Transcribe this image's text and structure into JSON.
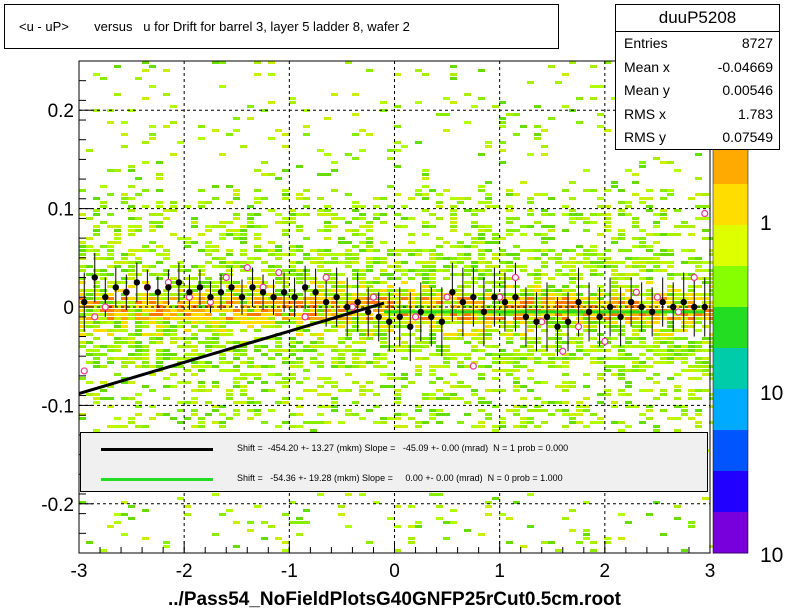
{
  "title": "<u - uP>       versus   u for Drift for barrel 3, layer 5 ladder 8, wafer 2",
  "stats": {
    "name": "duuP5208",
    "rows": [
      {
        "label": "Entries",
        "value": "8727"
      },
      {
        "label": "Mean x",
        "value": "-0.04669"
      },
      {
        "label": "Mean y",
        "value": "0.00546"
      },
      {
        "label": "RMS x",
        "value": "1.783"
      },
      {
        "label": "RMS y",
        "value": "0.07549"
      }
    ]
  },
  "fits": [
    {
      "color": "#000000",
      "text": "Shift =  -454.20 +- 13.27 (mkm) Slope =   -45.09 +- 0.00 (mrad)  N = 1 prob = 0.000"
    },
    {
      "color": "#22dd22",
      "text": "Shift =   -54.36 +- 19.28 (mkm) Slope =     0.00 +- 0.00 (mrad)  N = 0 prob = 1.000"
    }
  ],
  "file_label": "../Pass54_NoFieldPlotsG40GNFP25rCut0.5cm.root",
  "chart_data": {
    "type": "scatter",
    "xlim": [
      -3,
      3
    ],
    "ylim": [
      -0.25,
      0.25
    ],
    "x_ticks": [
      "-3",
      "-2",
      "-1",
      "0",
      "1",
      "2",
      "3"
    ],
    "y_ticks": [
      "0.2",
      "0.1",
      "0",
      "-0.1",
      "-0.2"
    ],
    "y_tick_values": [
      0.2,
      0.1,
      0,
      -0.1,
      -0.2
    ],
    "grid": true,
    "colorbar": {
      "labels": [
        "1",
        "10",
        "10"
      ],
      "scale": "log",
      "colors": [
        "#e60000",
        "#ff5a00",
        "#ffaa00",
        "#ffdd00",
        "#ddff00",
        "#88ff00",
        "#22dd22",
        "#00ccaa",
        "#00aaff",
        "#0055ff",
        "#2200ff",
        "#7700dd"
      ]
    },
    "profile_points": {
      "x": [
        -2.95,
        -2.85,
        -2.75,
        -2.65,
        -2.55,
        -2.45,
        -2.35,
        -2.25,
        -2.15,
        -2.05,
        -1.95,
        -1.85,
        -1.75,
        -1.65,
        -1.55,
        -1.45,
        -1.35,
        -1.25,
        -1.15,
        -1.05,
        -0.95,
        -0.85,
        -0.75,
        -0.65,
        -0.55,
        -0.45,
        -0.35,
        -0.25,
        -0.15,
        -0.05,
        0.05,
        0.15,
        0.25,
        0.35,
        0.45,
        0.55,
        0.65,
        0.75,
        0.85,
        0.95,
        1.05,
        1.15,
        1.25,
        1.35,
        1.45,
        1.55,
        1.65,
        1.75,
        1.85,
        1.95,
        2.05,
        2.15,
        2.25,
        2.35,
        2.45,
        2.55,
        2.65,
        2.75,
        2.85,
        2.95
      ],
      "y": [
        0.005,
        0.03,
        0.01,
        0.02,
        0.015,
        0.025,
        0.02,
        0.015,
        0.02,
        0.025,
        0.015,
        0.02,
        0.01,
        0.015,
        0.02,
        0.01,
        0.02,
        0.015,
        0.01,
        0.015,
        0.01,
        0.02,
        0.015,
        0.005,
        0.01,
        0.0,
        0.005,
        -0.005,
        -0.01,
        -0.015,
        -0.01,
        -0.02,
        -0.005,
        -0.01,
        -0.015,
        0.015,
        0.005,
        0.01,
        -0.005,
        0.01,
        0.005,
        0.01,
        -0.01,
        -0.015,
        -0.01,
        -0.02,
        -0.015,
        0.005,
        -0.005,
        -0.01,
        0.0,
        -0.01,
        0.005,
        0.0,
        -0.005,
        0.005,
        0.0,
        0.005,
        0.0,
        0.0
      ],
      "err": [
        0.03,
        0.025,
        0.02,
        0.02,
        0.018,
        0.02,
        0.018,
        0.016,
        0.018,
        0.02,
        0.018,
        0.018,
        0.016,
        0.018,
        0.02,
        0.018,
        0.02,
        0.018,
        0.018,
        0.02,
        0.02,
        0.022,
        0.024,
        0.025,
        0.03,
        0.03,
        0.03,
        0.025,
        0.025,
        0.03,
        0.03,
        0.035,
        0.03,
        0.03,
        0.035,
        0.03,
        0.035,
        0.03,
        0.035,
        0.03,
        0.03,
        0.035,
        0.03,
        0.03,
        0.035,
        0.03,
        0.03,
        0.035,
        0.03,
        0.03,
        0.03,
        0.03,
        0.025,
        0.025,
        0.025,
        0.025,
        0.025,
        0.03,
        0.03,
        0.03
      ]
    },
    "mean_points": {
      "x": [
        -2.95,
        -2.85,
        -2.75,
        -2.55,
        -2.35,
        -2.15,
        -1.95,
        -1.75,
        -1.6,
        -1.4,
        -1.25,
        -1.1,
        -0.85,
        -0.65,
        -0.4,
        -0.2,
        0.2,
        0.5,
        0.75,
        1.0,
        1.15,
        1.4,
        1.6,
        1.75,
        2.0,
        2.3,
        2.5,
        2.7,
        2.85,
        2.95
      ],
      "y": [
        -0.065,
        -0.01,
        0.0,
        0.015,
        0.02,
        0.025,
        0.01,
        0.005,
        0.03,
        0.04,
        0.02,
        0.035,
        -0.01,
        0.03,
        0.0,
        0.01,
        -0.01,
        0.01,
        -0.06,
        0.01,
        0.03,
        -0.015,
        -0.045,
        -0.02,
        -0.035,
        0.015,
        0.01,
        -0.005,
        0.03,
        0.095
      ]
    },
    "fit_lines": [
      {
        "color": "#000000",
        "x": [
          -3.0,
          -0.1
        ],
        "y": [
          -0.088,
          0.004
        ]
      },
      {
        "color": "#22dd22",
        "x": [
          -0.1,
          2.95
        ],
        "y": [
          -0.005,
          -0.005
        ]
      }
    ]
  }
}
